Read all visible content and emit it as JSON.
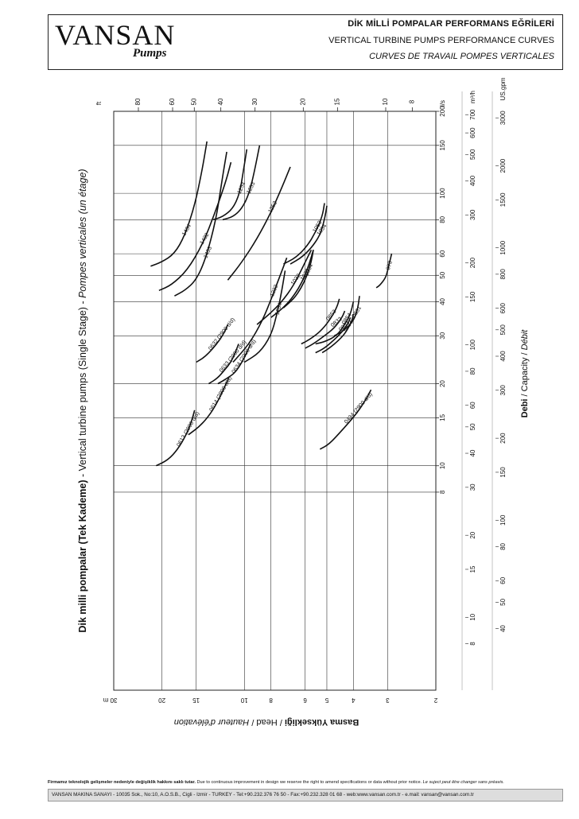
{
  "header": {
    "logo": "VANSAN",
    "logo_sub": "Pumps",
    "title_tr": "DİK MİLLİ POMPALAR PERFORMANS EĞRİLERİ",
    "title_en": "VERTICAL TURBINE PUMPS PERFORMANCE CURVES",
    "title_fr": "CURVES DE TRAVAIL POMPES VERTICALES"
  },
  "chart_data": {
    "type": "line",
    "title": "Dik milli pompalar (Tek Kademe) - Vertical turbine pumps (Single Stage) - Pompes verticales (un étage)",
    "title_bold": "Dik milli pompalar (Tek Kademe)",
    "title_mid": " - Vertical turbine pumps (Single Stage) - ",
    "title_italic": "Pompes verticales (un étage)",
    "xlabel_bold": "Debi",
    "xlabel_rest": " / Capacity / ",
    "xlabel_italic": "Débit",
    "ylabel_bold": "Basma Yüksekliği",
    "ylabel_rest": " / Head / ",
    "ylabel_italic": "Hauteur d'élévation",
    "x_scale": "log",
    "y_scale": "log",
    "flow_ls_range": [
      1.5,
      200
    ],
    "head_m_range": [
      2,
      30
    ],
    "flow_axes": {
      "ls": {
        "unit": "l/s",
        "ticks": [
          8,
          10,
          15,
          20,
          30,
          40,
          50,
          60,
          80,
          100,
          150,
          200
        ]
      },
      "m3h": {
        "unit": "m³/h",
        "ticks": [
          8,
          10,
          15,
          20,
          30,
          40,
          50,
          60,
          80,
          100,
          150,
          200,
          300,
          400,
          500,
          600,
          700
        ]
      },
      "usgpm": {
        "unit": "US.gpm",
        "ticks": [
          40,
          50,
          60,
          80,
          100,
          150,
          200,
          300,
          400,
          500,
          600,
          800,
          1000,
          1500,
          2000,
          3000
        ]
      }
    },
    "flow_tick_labels": {
      "ls": [
        "8",
        "10",
        "15",
        "20",
        "30",
        "40",
        "50",
        "60",
        "80",
        "100",
        "150",
        "200"
      ],
      "m3h": [
        "8",
        "10",
        "15",
        "20",
        "30",
        "40",
        "50",
        "60",
        "80",
        "100",
        "150",
        "200",
        "300",
        "400",
        "500",
        "600",
        "700"
      ],
      "usgpm": [
        "40",
        "50",
        "60",
        "80",
        "100",
        "150",
        "200",
        "300",
        "400",
        "500",
        "600",
        "800",
        "1000",
        "1500",
        "2000",
        "3000"
      ]
    },
    "head_axes": {
      "m": {
        "unit": "m",
        "ticks": [
          2,
          3,
          4,
          5,
          6,
          8,
          10,
          15,
          20,
          30
        ]
      },
      "ft": {
        "unit": "ft",
        "ticks": [
          8,
          10,
          15,
          20,
          30,
          40,
          50,
          60,
          80
        ]
      }
    },
    "head_tick_labels": {
      "m": [
        "2",
        "3",
        "4",
        "5",
        "6",
        "8",
        "10",
        "15",
        "20",
        "30"
      ],
      "ft": [
        "8",
        "10",
        "15",
        "20",
        "30",
        "40",
        "50",
        "60",
        "80"
      ]
    },
    "series": [
      {
        "name": "1434",
        "points": [
          [
            54,
            22
          ],
          [
            56,
            20
          ],
          [
            60,
            18
          ],
          [
            70,
            16.5
          ],
          [
            90,
            15.2
          ],
          [
            120,
            14.3
          ],
          [
            155,
            13.7
          ]
        ]
      },
      {
        "name": "1433",
        "points": [
          [
            42,
            18
          ],
          [
            44,
            16.5
          ],
          [
            48,
            15
          ],
          [
            58,
            13.8
          ],
          [
            80,
            12.7
          ],
          [
            110,
            12.1
          ],
          [
            142,
            11.6
          ]
        ]
      },
      {
        "name": "1432",
        "points": [
          [
            44,
            20.5
          ],
          [
            46,
            18.5
          ],
          [
            52,
            16.2
          ],
          [
            65,
            14.2
          ],
          [
            85,
            12.8
          ],
          [
            110,
            11.7
          ],
          [
            130,
            11.2
          ]
        ]
      },
      {
        "name": "1254",
        "points": [
          [
            80,
            13
          ],
          [
            82,
            12
          ],
          [
            88,
            11
          ],
          [
            100,
            10.4
          ],
          [
            120,
            10.1
          ],
          [
            145,
            9.8
          ]
        ]
      },
      {
        "name": "1253",
        "points": [
          [
            80,
            12
          ],
          [
            82,
            11
          ],
          [
            88,
            10.2
          ],
          [
            100,
            9.6
          ],
          [
            120,
            9.2
          ],
          [
            150,
            8.8
          ]
        ]
      },
      {
        "name": "1252",
        "points": [
          [
            48,
            11.5
          ],
          [
            56,
            10.2
          ],
          [
            68,
            9.0
          ],
          [
            85,
            8.0
          ],
          [
            105,
            7.3
          ],
          [
            125,
            6.8
          ]
        ]
      },
      {
        "name": "1234",
        "points": [
          [
            24,
            10
          ],
          [
            26,
            8.8
          ],
          [
            30,
            8.0
          ],
          [
            36,
            7.6
          ],
          [
            44,
            7.3
          ],
          [
            52,
            7.1
          ]
        ]
      },
      {
        "name": "1232",
        "points": [
          [
            24,
            11
          ],
          [
            28,
            9.6
          ],
          [
            34,
            8.6
          ],
          [
            42,
            7.9
          ],
          [
            50,
            7.4
          ],
          [
            58,
            7.0
          ]
        ]
      },
      {
        "name": "1054",
        "points": [
          [
            55,
            6.8
          ],
          [
            58,
            6.2
          ],
          [
            63,
            5.7
          ],
          [
            70,
            5.3
          ],
          [
            80,
            5.1
          ],
          [
            90,
            5.0
          ]
        ]
      },
      {
        "name": "1053",
        "points": [
          [
            55,
            7.2
          ],
          [
            58,
            6.5
          ],
          [
            64,
            5.9
          ],
          [
            72,
            5.5
          ],
          [
            82,
            5.2
          ],
          [
            92,
            5.1
          ]
        ]
      },
      {
        "name": "1034",
        "points": [
          [
            38,
            7.2
          ],
          [
            41,
            6.6
          ],
          [
            45,
            6.2
          ],
          [
            50,
            5.9
          ],
          [
            56,
            5.7
          ],
          [
            62,
            5.6
          ]
        ]
      },
      {
        "name": "1033",
        "points": [
          [
            35,
            8
          ],
          [
            38,
            7.2
          ],
          [
            42,
            6.6
          ],
          [
            48,
            6.1
          ],
          [
            55,
            5.8
          ],
          [
            62,
            5.6
          ]
        ]
      },
      {
        "name": "1032",
        "points": [
          [
            33,
            9
          ],
          [
            36,
            8.1
          ],
          [
            40,
            7.3
          ],
          [
            46,
            6.6
          ],
          [
            54,
            6.1
          ],
          [
            62,
            5.7
          ]
        ]
      },
      {
        "name": "0854",
        "points": [
          [
            28,
            5.5
          ],
          [
            28.5,
            5.1
          ],
          [
            30,
            4.6
          ],
          [
            33,
            4.3
          ],
          [
            36,
            4.1
          ],
          [
            40,
            4.0
          ]
        ]
      },
      {
        "name": "0853",
        "points": [
          [
            28,
            6.2
          ],
          [
            29,
            5.8
          ],
          [
            31,
            5.3
          ],
          [
            34,
            4.9
          ],
          [
            38,
            4.6
          ],
          [
            41,
            4.5
          ]
        ]
      },
      {
        "name": "0834",
        "points": [
          [
            26,
            5.2
          ],
          [
            27,
            4.9
          ],
          [
            29,
            4.5
          ],
          [
            31,
            4.25
          ],
          [
            34,
            4.05
          ],
          [
            36,
            4.0
          ]
        ]
      },
      {
        "name": "0833",
        "points": [
          [
            26,
            5.5
          ],
          [
            27,
            5.1
          ],
          [
            29,
            4.7
          ],
          [
            31,
            4.4
          ],
          [
            33,
            4.2
          ],
          [
            35,
            4.1
          ]
        ]
      },
      {
        "name": "0832",
        "points": [
          [
            27,
            6
          ],
          [
            28,
            5.6
          ],
          [
            30,
            5.1
          ],
          [
            32,
            4.7
          ],
          [
            35,
            4.4
          ],
          [
            37,
            4.3
          ]
        ]
      },
      {
        "name": "0831",
        "points": [
          [
            30,
            4.7
          ],
          [
            31,
            4.4
          ],
          [
            33,
            4.1
          ],
          [
            35,
            3.95
          ],
          [
            38,
            3.85
          ],
          [
            42,
            3.8
          ]
        ]
      },
      {
        "name": "073",
        "points": [
          [
            45,
            3.3
          ],
          [
            46,
            3.2
          ],
          [
            49,
            3.05
          ],
          [
            52,
            3.0
          ],
          [
            56,
            2.95
          ],
          [
            60,
            2.9
          ]
        ]
      },
      {
        "name": "0634 (2900 d/d)",
        "points": [
          [
            20,
            12.5
          ],
          [
            21,
            11.5
          ],
          [
            22,
            10.8
          ],
          [
            24,
            10.2
          ],
          [
            26,
            9.8
          ],
          [
            28,
            9.5
          ]
        ]
      },
      {
        "name": "0633 (2900 d/d)",
        "points": [
          [
            20,
            13.5
          ],
          [
            21,
            12.5
          ],
          [
            22.5,
            11.8
          ],
          [
            24,
            11.2
          ],
          [
            26,
            10.8
          ],
          [
            28,
            10.5
          ]
        ]
      },
      {
        "name": "0632 (2900 d/d)",
        "points": [
          [
            24,
            15
          ],
          [
            25,
            14
          ],
          [
            27,
            13
          ],
          [
            29,
            12.3
          ],
          [
            31,
            11.8
          ],
          [
            33,
            11.5
          ]
        ]
      },
      {
        "name": "0614 (2900 d/d)",
        "points": [
          [
            13,
            16
          ],
          [
            14,
            14.5
          ],
          [
            15.5,
            13.3
          ],
          [
            17.5,
            12.4
          ],
          [
            19.5,
            11.8
          ],
          [
            21,
            11.4
          ]
        ]
      },
      {
        "name": "0613 (2900 d/d)",
        "points": [
          [
            10,
            21
          ],
          [
            10.5,
            19
          ],
          [
            11.5,
            17.5
          ],
          [
            13,
            16.3
          ],
          [
            14.5,
            15.6
          ],
          [
            16,
            15.2
          ]
        ]
      },
      {
        "name": "0434 (2900 d/d)",
        "points": [
          [
            11.5,
            5.3
          ],
          [
            12,
            4.9
          ],
          [
            13.5,
            4.4
          ],
          [
            15.5,
            3.9
          ],
          [
            17.5,
            3.6
          ],
          [
            19,
            3.45
          ]
        ]
      }
    ]
  },
  "footer": {
    "note_bold": "Firmamız teknolojik gelişmeler nedeniyle değişiklik hakkını saklı tutar.",
    "note_rest": " Due to continuous improvement in design we reserve the right to amend specifications or data without prior notice.",
    "note_italic": " Le suject peut être changer sans préavis.",
    "contact": "VANSAN MAKINA SANAYI - 10035 Sok., No:10, A.O.S.B., Cigli - Izmir - TURKEY - Tel:+90.232.376 76 50 - Fax:+90.232.328 01 68 - web:www.vansan.com.tr - e.mail: vansan@vansan.com.tr"
  }
}
